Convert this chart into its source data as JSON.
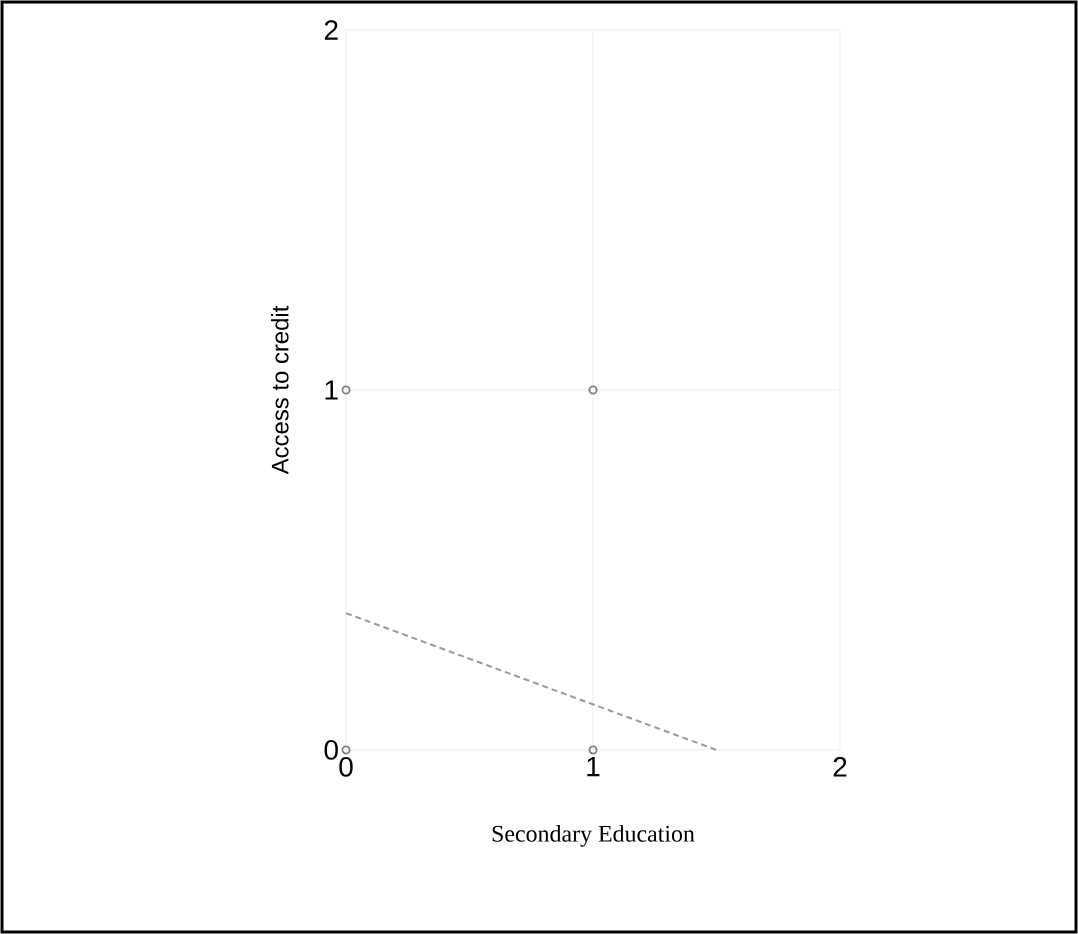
{
  "chart_data": {
    "type": "scatter",
    "xlabel": "Secondary Education",
    "ylabel": "Access to credit",
    "series": [
      {
        "type": "scatter",
        "x": [
          0,
          1,
          0,
          1
        ],
        "color": "#808080",
        "values": [
          1,
          1,
          0,
          0
        ],
        "marker": "circle"
      },
      {
        "type": "line",
        "color": "#999999",
        "x": [
          0,
          1.5
        ],
        "values": [
          0.38,
          0.0
        ],
        "line_style": "dashed",
        "marker": "none"
      }
    ],
    "xlim": [
      0,
      2
    ],
    "ylim": [
      0,
      2
    ],
    "xticks": [
      0,
      1,
      2
    ],
    "yticks": [
      0,
      1,
      2
    ],
    "grid": true
  }
}
